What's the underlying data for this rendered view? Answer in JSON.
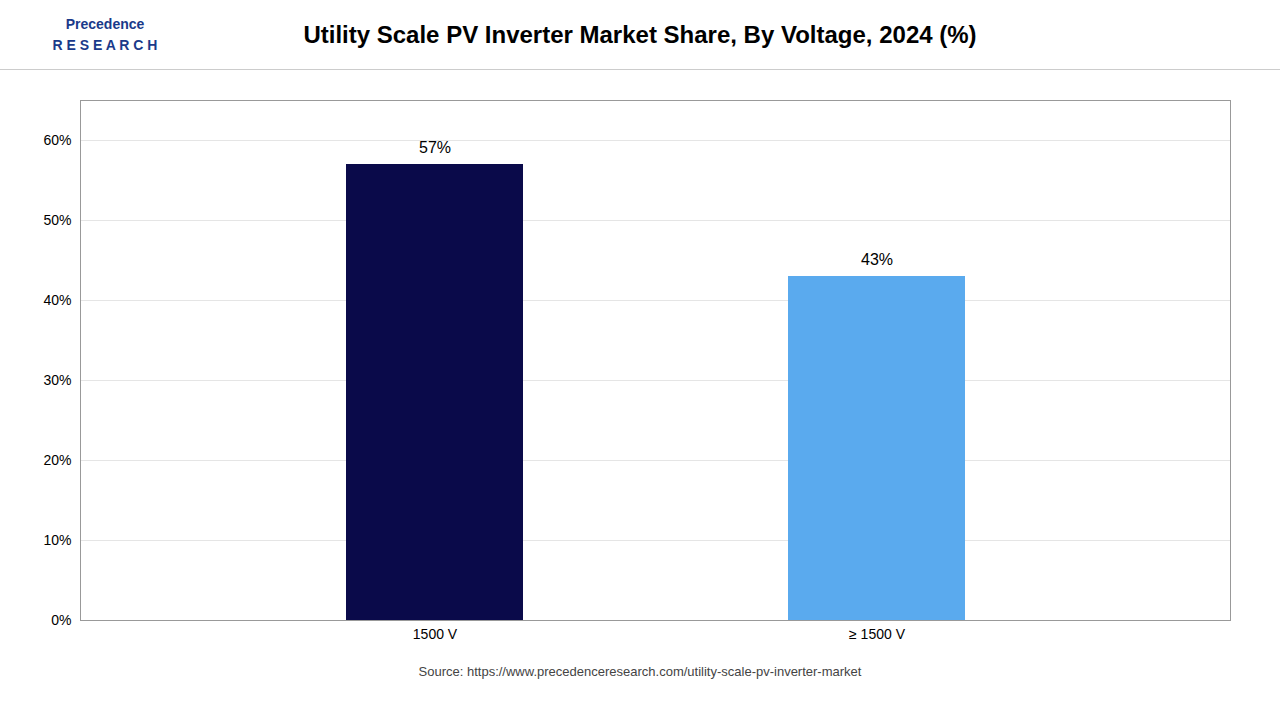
{
  "chart_data": {
    "type": "bar",
    "title": "Utility Scale PV Inverter Market Share, By Voltage, 2024 (%)",
    "categories": [
      "1500 V",
      "≥ 1500 V"
    ],
    "values": [
      57,
      43
    ],
    "value_labels": [
      "57%",
      "43%"
    ],
    "data_labels": true,
    "colors": [
      "#0a0a4a",
      "#5aaaee"
    ],
    "ylim": [
      0,
      65
    ],
    "yticks": [
      {
        "value": 0,
        "label": "0%"
      },
      {
        "value": 10,
        "label": "10%"
      },
      {
        "value": 20,
        "label": "20%"
      },
      {
        "value": 30,
        "label": "30%"
      },
      {
        "value": 40,
        "label": "40%"
      },
      {
        "value": 50,
        "label": "50%"
      },
      {
        "value": 60,
        "label": "60%"
      }
    ],
    "grid": true,
    "annotations": [
      "Precedence",
      "R E S E A R C H"
    ],
    "source": "Source: https://www.precedenceresearch.com/utility-scale-pv-inverter-market"
  }
}
